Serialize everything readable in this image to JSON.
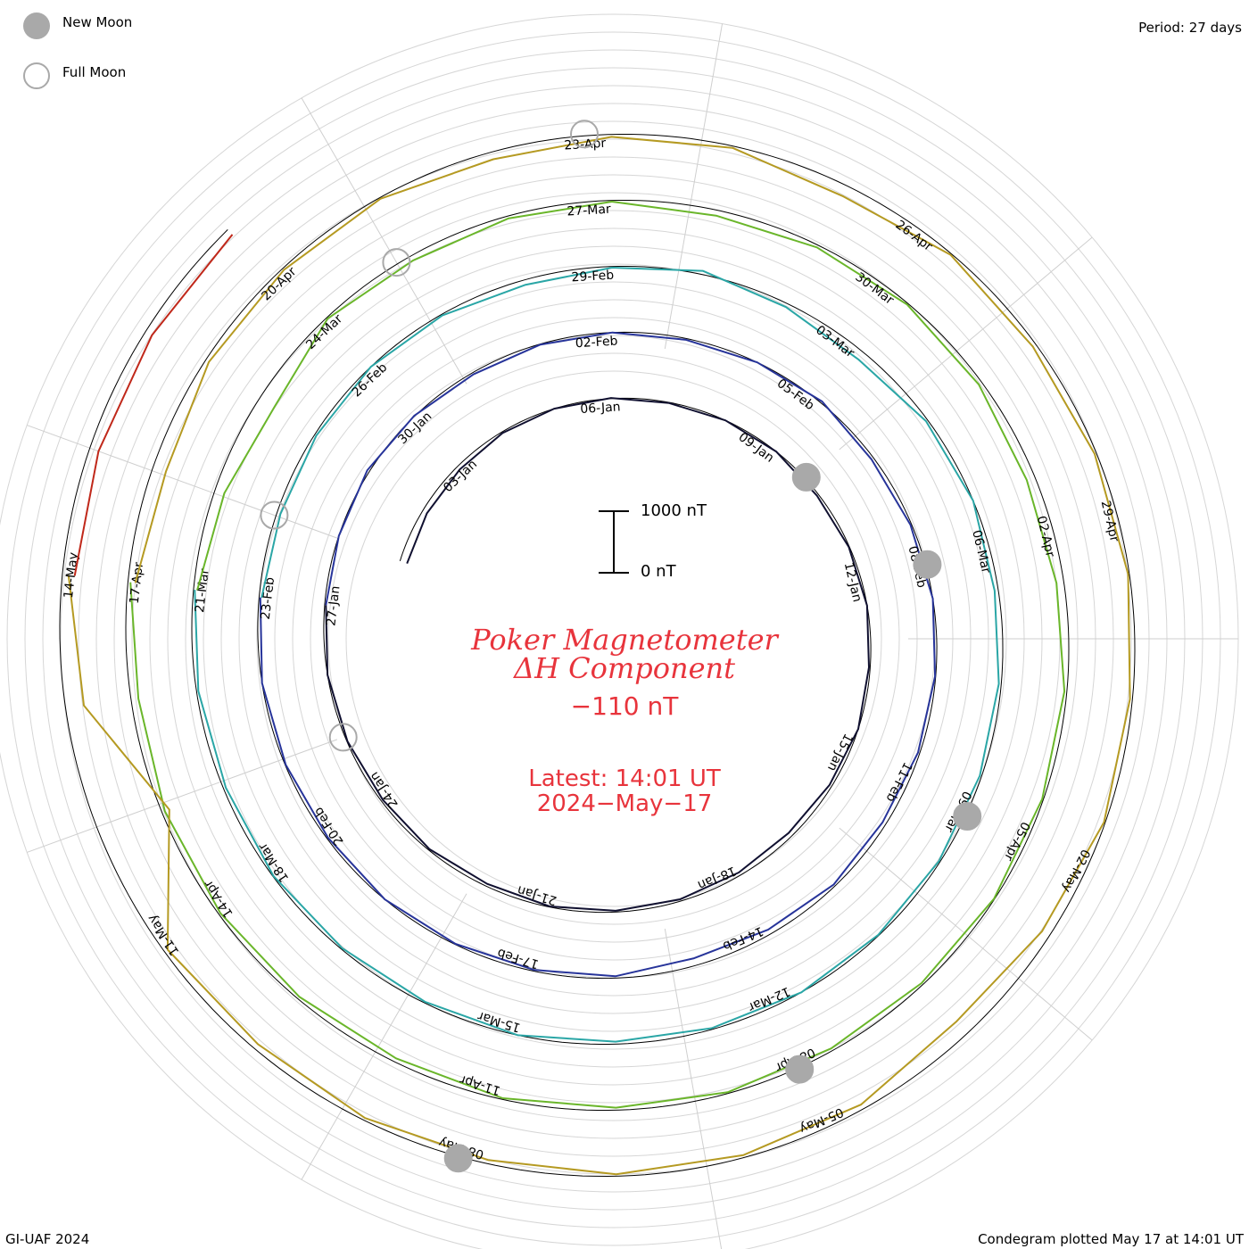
{
  "legend": {
    "new_moon": "New Moon",
    "full_moon": "Full Moon",
    "new_moon_color": "#a9a9a9",
    "full_moon_color": "#a9a9a9"
  },
  "period": "Period: 27 days",
  "scale": {
    "top_label": "1000 nT",
    "bottom_label": "0 nT"
  },
  "title": {
    "line1": "Poker Magnetometer",
    "line2": "ΔH Component",
    "value": "−110 nT",
    "latest": "Latest: 14:01 UT",
    "date": "2024−May−17",
    "color": "#e8343c"
  },
  "footer": {
    "left": "GI-UAF 2024",
    "right": "Condegram plotted May 17 at 14:01 UT"
  },
  "chart_data": {
    "type": "line",
    "title": "Poker Magnetometer ΔH Component",
    "period_days": 27,
    "units": "nT",
    "scale_nT": [
      0,
      1000
    ],
    "current_value_nT": -110,
    "moon_phase_markers": [
      "new",
      "full"
    ],
    "series": [
      {
        "name": "",
        "color": "#101030",
        "start": "2024-01-01",
        "end": "2024-01-27",
        "tick_labels": [
          "03-Jan",
          "06-Jan",
          "09-Jan",
          "12-Jan",
          "15-Jan",
          "18-Jan",
          "21-Jan",
          "24-Jan"
        ],
        "dH_nT": [
          -120,
          -80,
          -60,
          -20,
          0,
          10,
          -10,
          0,
          0,
          -30,
          -10,
          0,
          -20,
          0,
          -40,
          -70,
          -50,
          -30,
          -20,
          -10,
          -40,
          -20,
          -30,
          -10,
          0,
          -20
        ]
      },
      {
        "name": "",
        "color": "#27349a",
        "start": "2024-01-27",
        "end": "2024-02-23",
        "tick_labels": [
          "27-Jan",
          "30-Jan",
          "02-Feb",
          "05-Feb",
          "08-Feb",
          "11-Feb",
          "14-Feb",
          "17-Feb",
          "20-Feb",
          "23-Feb"
        ],
        "dH_nT": [
          -20,
          0,
          40,
          10,
          -30,
          -10,
          0,
          -20,
          0,
          30,
          -40,
          -20,
          0,
          -10,
          -30,
          -60,
          -30,
          -80,
          -120,
          -30,
          -20,
          -10,
          0,
          -20,
          -10,
          0,
          -20
        ]
      },
      {
        "name": "",
        "color": "#2aa6a6",
        "start": "2024-02-23",
        "end": "2024-03-21",
        "tick_labels": [
          "26-Feb",
          "29-Feb",
          "03-Mar",
          "06-Mar",
          "09-Mar",
          "12-Mar",
          "15-Mar",
          "18-Mar",
          "21-Mar"
        ],
        "dH_nT": [
          -40,
          -60,
          -30,
          0,
          -20,
          -80,
          -20,
          60,
          -60,
          -140,
          -30,
          0,
          -60,
          -40,
          -30,
          -20,
          -10,
          0,
          -20,
          -40,
          0,
          -20,
          -20,
          -10,
          -40,
          -30,
          -20
        ]
      },
      {
        "name": "",
        "color": "#6ab62a",
        "start": "2024-03-21",
        "end": "2024-04-17",
        "tick_labels": [
          "24-Mar",
          "27-Mar",
          "30-Mar",
          "02-Apr",
          "05-Apr",
          "08-Apr",
          "11-Apr",
          "14-Apr",
          "17-Apr"
        ],
        "dH_nT": [
          -60,
          -160,
          -280,
          -20,
          -80,
          -40,
          -20,
          -90,
          -40,
          -20,
          -60,
          -140,
          -120,
          -40,
          -20,
          -10,
          -30,
          -40,
          -20,
          -40,
          -20,
          -60,
          -40,
          -30,
          -50,
          -120,
          -40
        ]
      },
      {
        "name": "",
        "color": "#b59a22",
        "start": "2024-04-17",
        "end": "2024-05-14",
        "tick_labels": [
          "20-Apr",
          "23-Apr",
          "26-Apr",
          "29-Apr",
          "02-May",
          "05-May",
          "08-May",
          "11-May",
          "14-May"
        ],
        "dH_nT": [
          -120,
          -220,
          -60,
          -30,
          -20,
          -120,
          -40,
          -30,
          -180,
          -20,
          -60,
          -30,
          -20,
          -40,
          -20,
          -140,
          -260,
          -80,
          -40,
          -30,
          -60,
          -40,
          -90,
          -60,
          -1200,
          -300,
          -100
        ]
      },
      {
        "name": "",
        "color": "#c0281a",
        "start": "2024-05-14",
        "end": "2024-05-17",
        "tick_labels": [],
        "dH_nT": [
          -200,
          -150,
          -120,
          -110
        ]
      }
    ]
  }
}
